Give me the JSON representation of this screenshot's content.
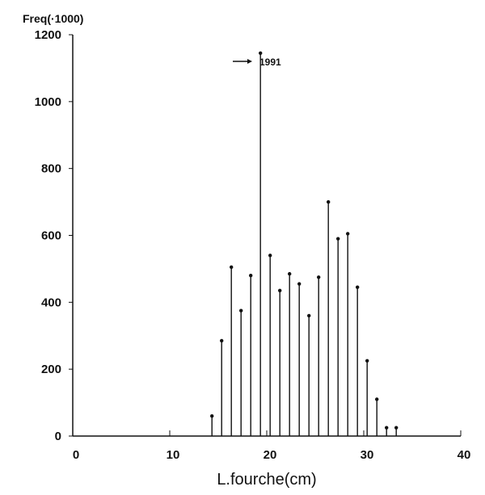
{
  "chart_data": {
    "type": "bar",
    "style": "lollipop",
    "xlabel": "L.fourche(cm)",
    "ylabel": "Freq(·1000)",
    "xlim": [
      0,
      40
    ],
    "ylim": [
      0,
      1200
    ],
    "x_ticks": [
      "0",
      "10",
      "20",
      "30",
      "40"
    ],
    "y_ticks": [
      "0",
      "200",
      "400",
      "600",
      "800",
      "1000",
      "1200"
    ],
    "grid": false,
    "annotation": "1991",
    "x": [
      14,
      15,
      16,
      17,
      18,
      19,
      20,
      21,
      22,
      23,
      24,
      25,
      26,
      27,
      28,
      29,
      30,
      31,
      32,
      33
    ],
    "values": [
      60,
      285,
      505,
      375,
      480,
      1145,
      540,
      435,
      485,
      455,
      360,
      475,
      700,
      590,
      605,
      445,
      225,
      110,
      25,
      25
    ]
  }
}
